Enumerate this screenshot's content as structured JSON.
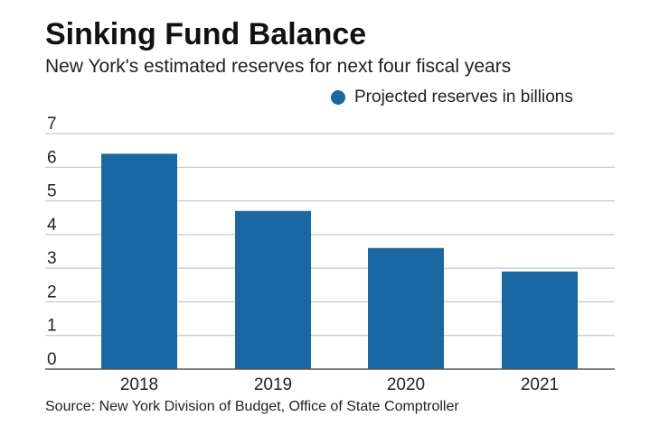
{
  "header": {
    "title": "Sinking Fund Balance",
    "subtitle": "New York's estimated reserves for next four fiscal years"
  },
  "legend": {
    "label": "Projected reserves in billions",
    "color": "#1b67a3"
  },
  "footer": {
    "source": "Source: New York Division of Budget, Office of State Comptroller"
  },
  "colors": {
    "bar": "#1b67a3",
    "grid": "#bbbbbb",
    "axis": "#555555",
    "text": "#222222"
  },
  "chart_data": {
    "type": "bar",
    "title": "Sinking Fund Balance",
    "subtitle": "New York's estimated reserves for next four fiscal years",
    "categories": [
      "2018",
      "2019",
      "2020",
      "2021"
    ],
    "series": [
      {
        "name": "Projected reserves in billions",
        "values": [
          6.4,
          4.7,
          3.6,
          2.9
        ]
      }
    ],
    "xlabel": "",
    "ylabel": "",
    "ylim": [
      0,
      7
    ],
    "yticks": [
      0,
      1,
      2,
      3,
      4,
      5,
      6,
      7
    ],
    "grid": true,
    "legend_position": "top-right"
  }
}
